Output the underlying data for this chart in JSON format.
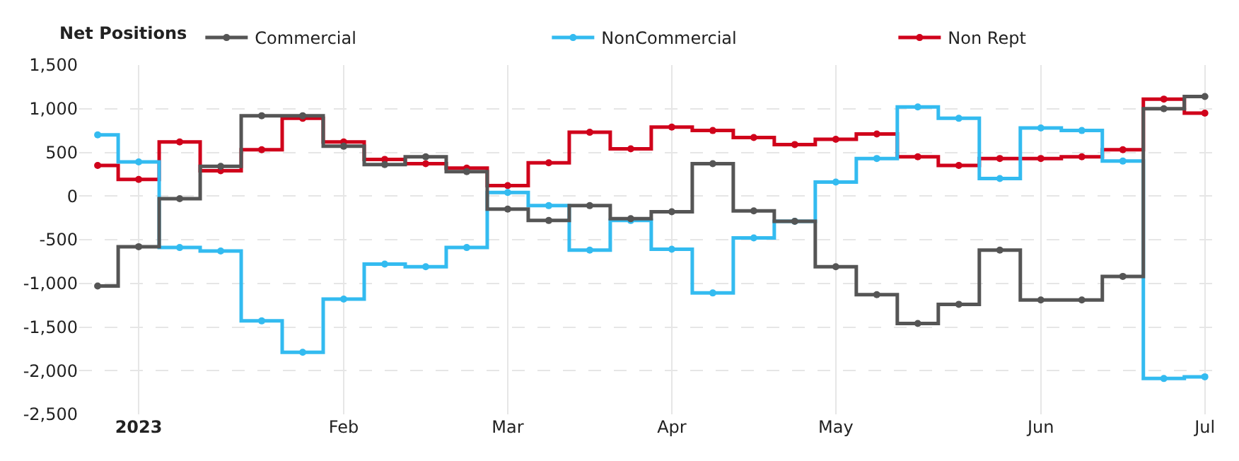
{
  "chart_data": {
    "type": "step",
    "legend_title": "Net Positions",
    "categories": [
      null,
      "2023",
      null,
      null,
      null,
      null,
      "Feb",
      null,
      null,
      null,
      "Mar",
      null,
      null,
      null,
      "Apr",
      null,
      null,
      null,
      "May",
      null,
      null,
      null,
      null,
      "Jun",
      null,
      null,
      null,
      "Jul"
    ],
    "series": [
      {
        "name": "Commercial",
        "color": "#555555",
        "values": [
          -1030,
          -580,
          -30,
          340,
          920,
          920,
          570,
          360,
          450,
          280,
          -150,
          -280,
          -110,
          -260,
          -180,
          370,
          -170,
          -290,
          -810,
          -1130,
          -1460,
          -1240,
          -620,
          -1190,
          -1190,
          -920,
          1000,
          1140
        ]
      },
      {
        "name": "NonCommercial",
        "color": "#33bbf0",
        "values": [
          700,
          390,
          -590,
          -630,
          -1430,
          -1790,
          -1180,
          -780,
          -810,
          -590,
          40,
          -110,
          -620,
          -280,
          -610,
          -1110,
          -480,
          -290,
          160,
          430,
          1020,
          890,
          200,
          780,
          750,
          400,
          -2090,
          -2070
        ]
      },
      {
        "name": "Non Rept",
        "color": "#d0021b",
        "values": [
          350,
          190,
          620,
          290,
          530,
          890,
          620,
          420,
          370,
          320,
          120,
          380,
          730,
          540,
          790,
          750,
          670,
          590,
          650,
          710,
          450,
          350,
          430,
          430,
          450,
          530,
          1110,
          950
        ]
      }
    ],
    "ylim": [
      -2500,
      1500
    ],
    "yticks": [
      {
        "value": -2500,
        "label": "-2,500"
      },
      {
        "value": -2000,
        "label": "-2,000"
      },
      {
        "value": -1500,
        "label": "-1,500"
      },
      {
        "value": -1000,
        "label": "-1,000"
      },
      -500,
      0,
      500,
      {
        "value": 1000,
        "label": "1,000"
      },
      {
        "value": 1500,
        "label": "1,500"
      }
    ],
    "grid": true,
    "legend": "top",
    "marker": "circle",
    "line_style": "solid"
  }
}
